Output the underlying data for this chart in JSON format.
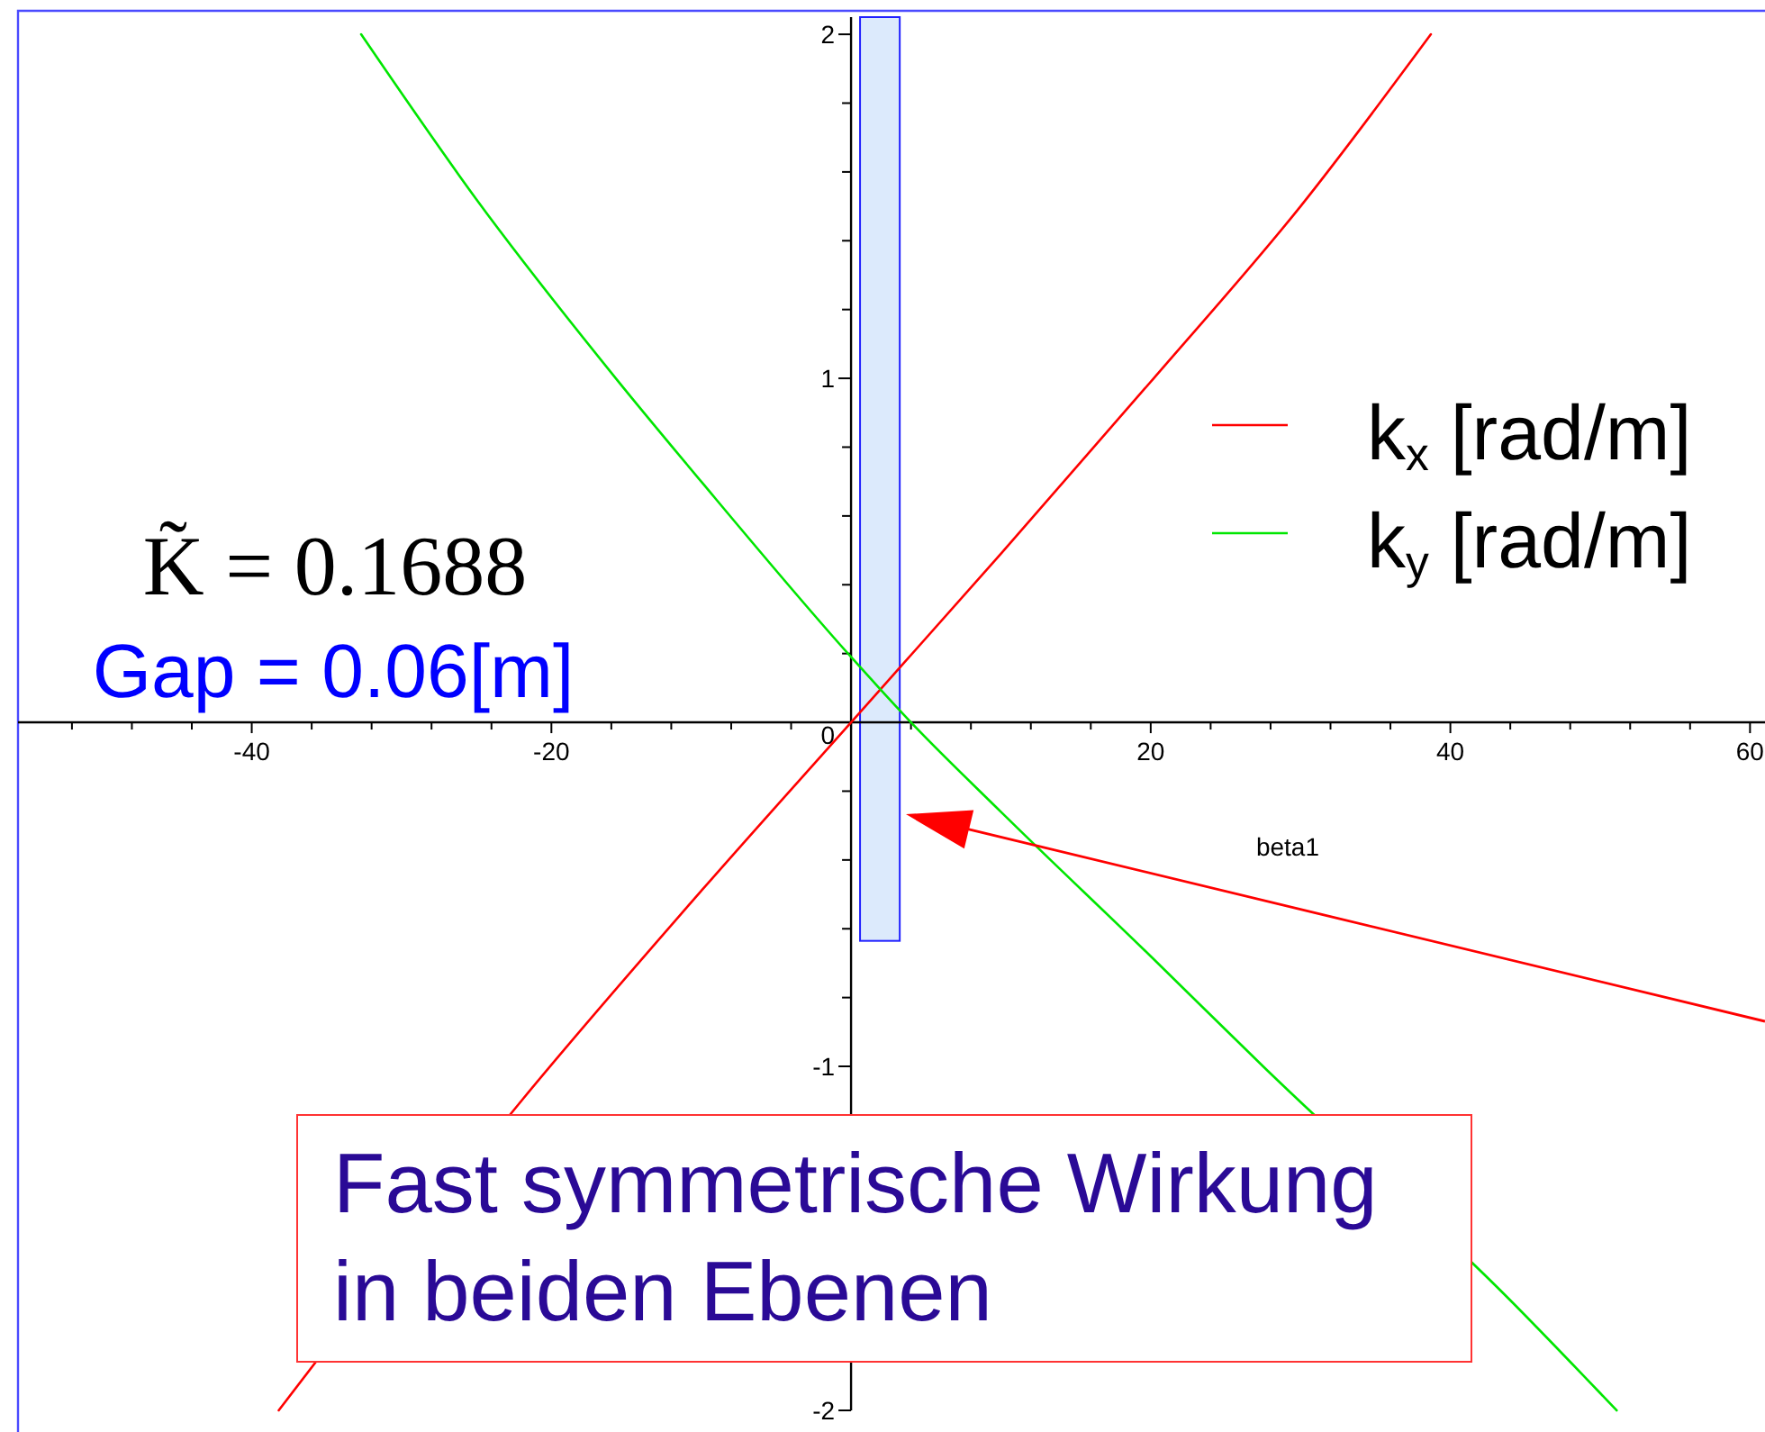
{
  "chart_data": {
    "type": "line",
    "xlabel": "beta1",
    "xlim": [
      -55.6,
      61
    ],
    "ylim": [
      -2,
      2.05
    ],
    "xticks": [
      {
        "value": -52,
        "label": null
      },
      {
        "value": -48,
        "label": null
      },
      {
        "value": -44,
        "label": null
      },
      -40,
      {
        "value": -36,
        "label": null
      },
      {
        "value": -32,
        "label": null
      },
      {
        "value": -28,
        "label": null
      },
      {
        "value": -24,
        "label": null
      },
      -20,
      {
        "value": -16,
        "label": null
      },
      {
        "value": -12,
        "label": null
      },
      {
        "value": -8,
        "label": null
      },
      {
        "value": -4,
        "label": null
      },
      {
        "value": 0,
        "label": null
      },
      {
        "value": 4,
        "label": null
      },
      {
        "value": 8,
        "label": null
      },
      {
        "value": 12,
        "label": null
      },
      {
        "value": 16,
        "label": null
      },
      20,
      {
        "value": 24,
        "label": null
      },
      {
        "value": 28,
        "label": null
      },
      {
        "value": 32,
        "label": null
      },
      {
        "value": 36,
        "label": null
      },
      40,
      {
        "value": 44,
        "label": null
      },
      {
        "value": 48,
        "label": null
      },
      {
        "value": 52,
        "label": null
      },
      {
        "value": 56,
        "label": null
      },
      60
    ],
    "yticks": [
      -2,
      {
        "value": -1.8,
        "label": null
      },
      {
        "value": -1.6,
        "label": null
      },
      {
        "value": -1.4,
        "label": null
      },
      {
        "value": -1.2,
        "label": null
      },
      -1,
      {
        "value": -0.8,
        "label": null
      },
      {
        "value": -0.6,
        "label": null
      },
      {
        "value": -0.4,
        "label": null
      },
      {
        "value": -0.2,
        "label": null
      },
      0,
      {
        "value": 0.2,
        "label": null
      },
      {
        "value": 0.4,
        "label": null
      },
      {
        "value": 0.6,
        "label": null
      },
      {
        "value": 0.8,
        "label": null
      },
      1,
      {
        "value": 1.2,
        "label": null
      },
      {
        "value": 1.4,
        "label": null
      },
      {
        "value": 1.6,
        "label": null
      },
      {
        "value": 1.8,
        "label": null
      },
      2
    ],
    "series": [
      {
        "name": "k$_{x}$ [rad/m]",
        "color": "#ff0000",
        "x": [
          -38.2,
          -22,
          -10,
          0,
          10,
          20.2,
          30,
          38.7
        ],
        "values": [
          -2.0,
          -1.1,
          -0.49,
          0,
          0.49,
          1.0,
          1.5,
          2.0
        ]
      },
      {
        "name": "k$_{y}$ [rad/m]",
        "color": "#00e600",
        "x": [
          -32.7,
          -25,
          -15.7,
          -10,
          0,
          4,
          10,
          20,
          27.5,
          44,
          51.1
        ],
        "values": [
          2.0,
          1.52,
          1.0,
          0.7,
          0.19,
          0,
          -0.26,
          -0.68,
          -1.0,
          -1.68,
          -2.0
        ]
      }
    ],
    "bands": [
      {
        "axis": "x",
        "from": 0.6,
        "to": 3.25,
        "color": "#dceafc"
      }
    ],
    "legend": "top right",
    "annotations": [
      "K̃ = 0.1688",
      "Gap = 0.06[m]",
      "Fast symmetrische Wirkung\nin beiden Ebenen"
    ]
  }
}
